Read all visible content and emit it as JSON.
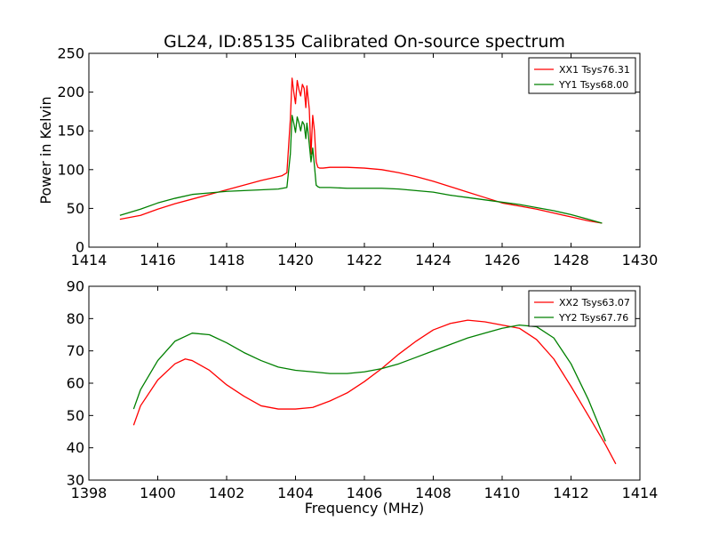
{
  "figure": {
    "title": "GL24, ID:85135 Calibrated On-source spectrum"
  },
  "chart_data": [
    {
      "type": "line",
      "title": "GL24, ID:85135 Calibrated On-source spectrum",
      "xlabel": "",
      "ylabel": "Power in Kelvin",
      "xlim": [
        1414,
        1430
      ],
      "ylim": [
        0,
        250
      ],
      "xticks": [
        "1414",
        "1416",
        "1418",
        "1420",
        "1422",
        "1424",
        "1426",
        "1428",
        "1430"
      ],
      "yticks": [
        "0",
        "50",
        "100",
        "150",
        "200",
        "250"
      ],
      "grid": false,
      "legend": "top-right",
      "series": [
        {
          "name": "XX1 Tsys76.31",
          "color": "#ff0000",
          "x": [
            1414.9,
            1415.5,
            1416,
            1416.5,
            1417,
            1417.5,
            1418,
            1418.5,
            1419,
            1419.3,
            1419.6,
            1419.75,
            1419.85,
            1419.9,
            1419.95,
            1420.0,
            1420.05,
            1420.1,
            1420.15,
            1420.2,
            1420.25,
            1420.3,
            1420.33,
            1420.36,
            1420.4,
            1420.45,
            1420.5,
            1420.55,
            1420.6,
            1420.65,
            1420.7,
            1420.8,
            1421,
            1421.5,
            1422,
            1422.5,
            1423,
            1423.5,
            1424,
            1424.5,
            1425,
            1425.5,
            1426,
            1426.5,
            1427,
            1427.5,
            1428,
            1428.5,
            1428.9
          ],
          "y": [
            36,
            41,
            49,
            56,
            62,
            68,
            74,
            80,
            86,
            89,
            92,
            96,
            165,
            218,
            200,
            185,
            215,
            203,
            195,
            210,
            205,
            180,
            208,
            195,
            178,
            120,
            170,
            150,
            110,
            103,
            102,
            102,
            103,
            103,
            102,
            100,
            96,
            91,
            85,
            78,
            71,
            64,
            57,
            53,
            49,
            44,
            39,
            34,
            31
          ]
        },
        {
          "name": "YY1 Tsys68.00",
          "color": "#008000",
          "x": [
            1414.9,
            1415.5,
            1416,
            1416.5,
            1417,
            1417.5,
            1418,
            1418.5,
            1419,
            1419.5,
            1419.75,
            1419.85,
            1419.9,
            1419.95,
            1420.0,
            1420.05,
            1420.1,
            1420.15,
            1420.2,
            1420.25,
            1420.3,
            1420.33,
            1420.36,
            1420.4,
            1420.45,
            1420.5,
            1420.55,
            1420.6,
            1420.65,
            1420.7,
            1420.8,
            1421,
            1421.5,
            1422,
            1422.5,
            1423,
            1423.5,
            1424,
            1424.5,
            1425,
            1425.5,
            1426,
            1426.5,
            1427,
            1427.5,
            1428,
            1428.5,
            1428.9
          ],
          "y": [
            41,
            49,
            57,
            63,
            68,
            70,
            72,
            73,
            74,
            75,
            77,
            120,
            170,
            160,
            148,
            168,
            160,
            150,
            162,
            158,
            140,
            160,
            150,
            133,
            110,
            128,
            105,
            80,
            78,
            77,
            77,
            77,
            76,
            76,
            76,
            75,
            73,
            71,
            67,
            64,
            61,
            58,
            55,
            51,
            47,
            42,
            36,
            31
          ]
        }
      ]
    },
    {
      "type": "line",
      "title": "",
      "xlabel": "Frequency (MHz)",
      "ylabel": "",
      "xlim": [
        1398,
        1414
      ],
      "ylim": [
        30,
        90
      ],
      "xticks": [
        "1398",
        "1400",
        "1402",
        "1404",
        "1406",
        "1408",
        "1410",
        "1412",
        "1414"
      ],
      "yticks": [
        "30",
        "40",
        "50",
        "60",
        "70",
        "80",
        "90"
      ],
      "grid": false,
      "legend": "top-right",
      "series": [
        {
          "name": "XX2 Tsys63.07",
          "color": "#ff0000",
          "x": [
            1399.3,
            1399.5,
            1400,
            1400.5,
            1400.8,
            1401,
            1401.5,
            1402,
            1402.5,
            1403,
            1403.5,
            1404,
            1404.5,
            1405,
            1405.5,
            1406,
            1406.5,
            1407,
            1407.5,
            1408,
            1408.5,
            1409,
            1409.5,
            1410,
            1410.5,
            1411,
            1411.5,
            1412,
            1412.5,
            1413,
            1413.3
          ],
          "y": [
            47,
            53,
            61,
            66,
            67.5,
            67,
            64,
            59.5,
            56,
            53,
            52,
            52,
            52.5,
            54.5,
            57,
            60.5,
            64.5,
            69,
            73,
            76.5,
            78.5,
            79.5,
            79,
            78,
            77,
            73.5,
            67.5,
            59,
            50,
            41,
            35
          ]
        },
        {
          "name": "YY2 Tsys67.76",
          "color": "#008000",
          "x": [
            1399.3,
            1399.5,
            1400,
            1400.5,
            1401,
            1401.5,
            1402,
            1402.5,
            1403,
            1403.5,
            1404,
            1404.5,
            1405,
            1405.5,
            1406,
            1406.5,
            1407,
            1407.5,
            1408,
            1408.5,
            1409,
            1409.5,
            1410,
            1410.5,
            1411,
            1411.5,
            1412,
            1412.5,
            1413
          ],
          "y": [
            52,
            58,
            67,
            73,
            75.5,
            75,
            72.5,
            69.5,
            67,
            65,
            64,
            63.5,
            63,
            63,
            63.5,
            64.5,
            66,
            68,
            70,
            72,
            74,
            75.5,
            77,
            78,
            77.5,
            74,
            66,
            55,
            42
          ]
        }
      ]
    }
  ]
}
